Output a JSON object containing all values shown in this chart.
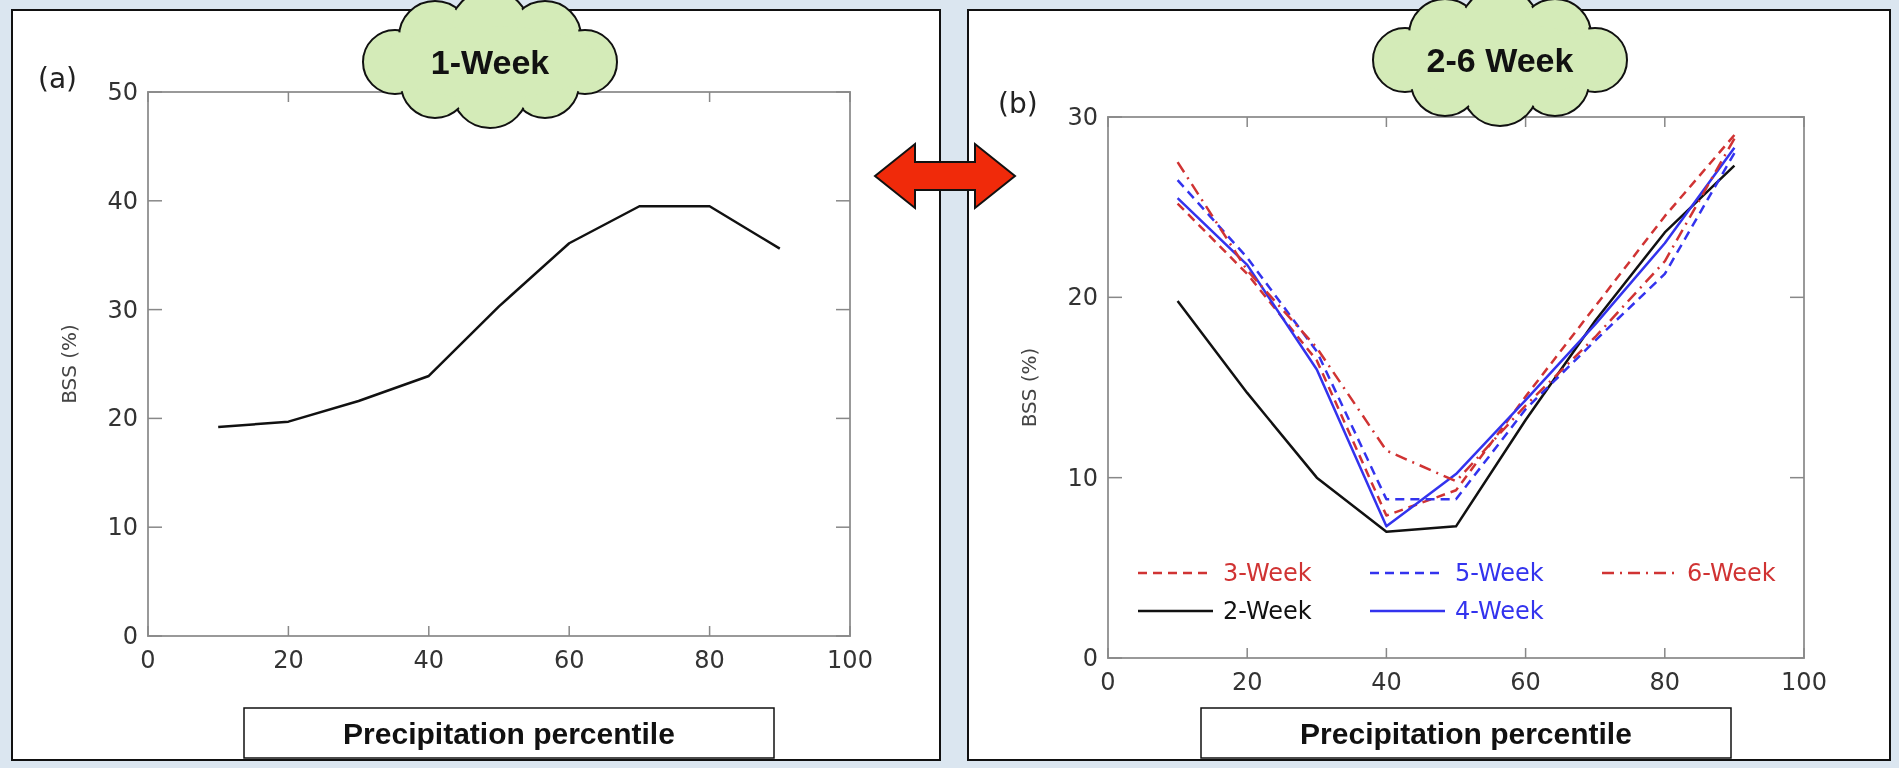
{
  "chart_data": [
    {
      "type": "line",
      "title": "1-Week",
      "xlabel": "Precipitation percentile",
      "ylabel": "BSS (%)",
      "annotations": [
        "(a)"
      ],
      "x": [
        10,
        20,
        30,
        40,
        50,
        60,
        70,
        80,
        90
      ],
      "xlim": [
        0,
        100
      ],
      "ylim": [
        0,
        50
      ],
      "xticks": [
        0,
        20,
        40,
        60,
        80,
        100
      ],
      "yticks": [
        0,
        10,
        20,
        30,
        40,
        50
      ],
      "series": [
        {
          "color": "#111111",
          "line_style": "solid",
          "values": [
            19.2,
            19.7,
            21.6,
            23.9,
            30.3,
            36.1,
            39.5,
            39.5,
            35.6
          ]
        }
      ],
      "legend": false
    },
    {
      "type": "line",
      "title": "2-6 Week",
      "xlabel": "Precipitation percentile",
      "ylabel": "BSS (%)",
      "annotations": [
        "(b)"
      ],
      "x": [
        10,
        20,
        30,
        40,
        50,
        60,
        70,
        80,
        90
      ],
      "xlim": [
        0,
        100
      ],
      "ylim": [
        0,
        30
      ],
      "xticks": [
        0,
        20,
        40,
        60,
        80,
        100
      ],
      "yticks": [
        0,
        10,
        20,
        30
      ],
      "series": [
        {
          "name": "3-Week",
          "color": "#d03333",
          "line_style": "dashed",
          "values": [
            25.2,
            21.3,
            16.5,
            7.9,
            9.3,
            14.5,
            19.5,
            24.5,
            29.0
          ]
        },
        {
          "name": "2-Week",
          "color": "#111111",
          "line_style": "solid",
          "values": [
            19.8,
            14.7,
            10.0,
            7.0,
            7.3,
            13.2,
            18.7,
            23.6,
            27.3
          ]
        },
        {
          "name": "5-Week",
          "color": "#3333ee",
          "line_style": "dashed",
          "values": [
            26.5,
            22.2,
            17.0,
            8.8,
            8.8,
            13.8,
            17.6,
            21.3,
            28.0
          ]
        },
        {
          "name": "4-Week",
          "color": "#3333ee",
          "line_style": "solid",
          "values": [
            25.5,
            21.8,
            16.0,
            7.3,
            10.2,
            14.3,
            18.5,
            23.0,
            28.3
          ]
        },
        {
          "name": "6-Week",
          "color": "#d03333",
          "line_style": "dashdot",
          "values": [
            27.5,
            21.5,
            17.2,
            11.5,
            9.8,
            14.0,
            17.8,
            22.0,
            28.8
          ]
        }
      ],
      "legend": "bottom"
    }
  ]
}
